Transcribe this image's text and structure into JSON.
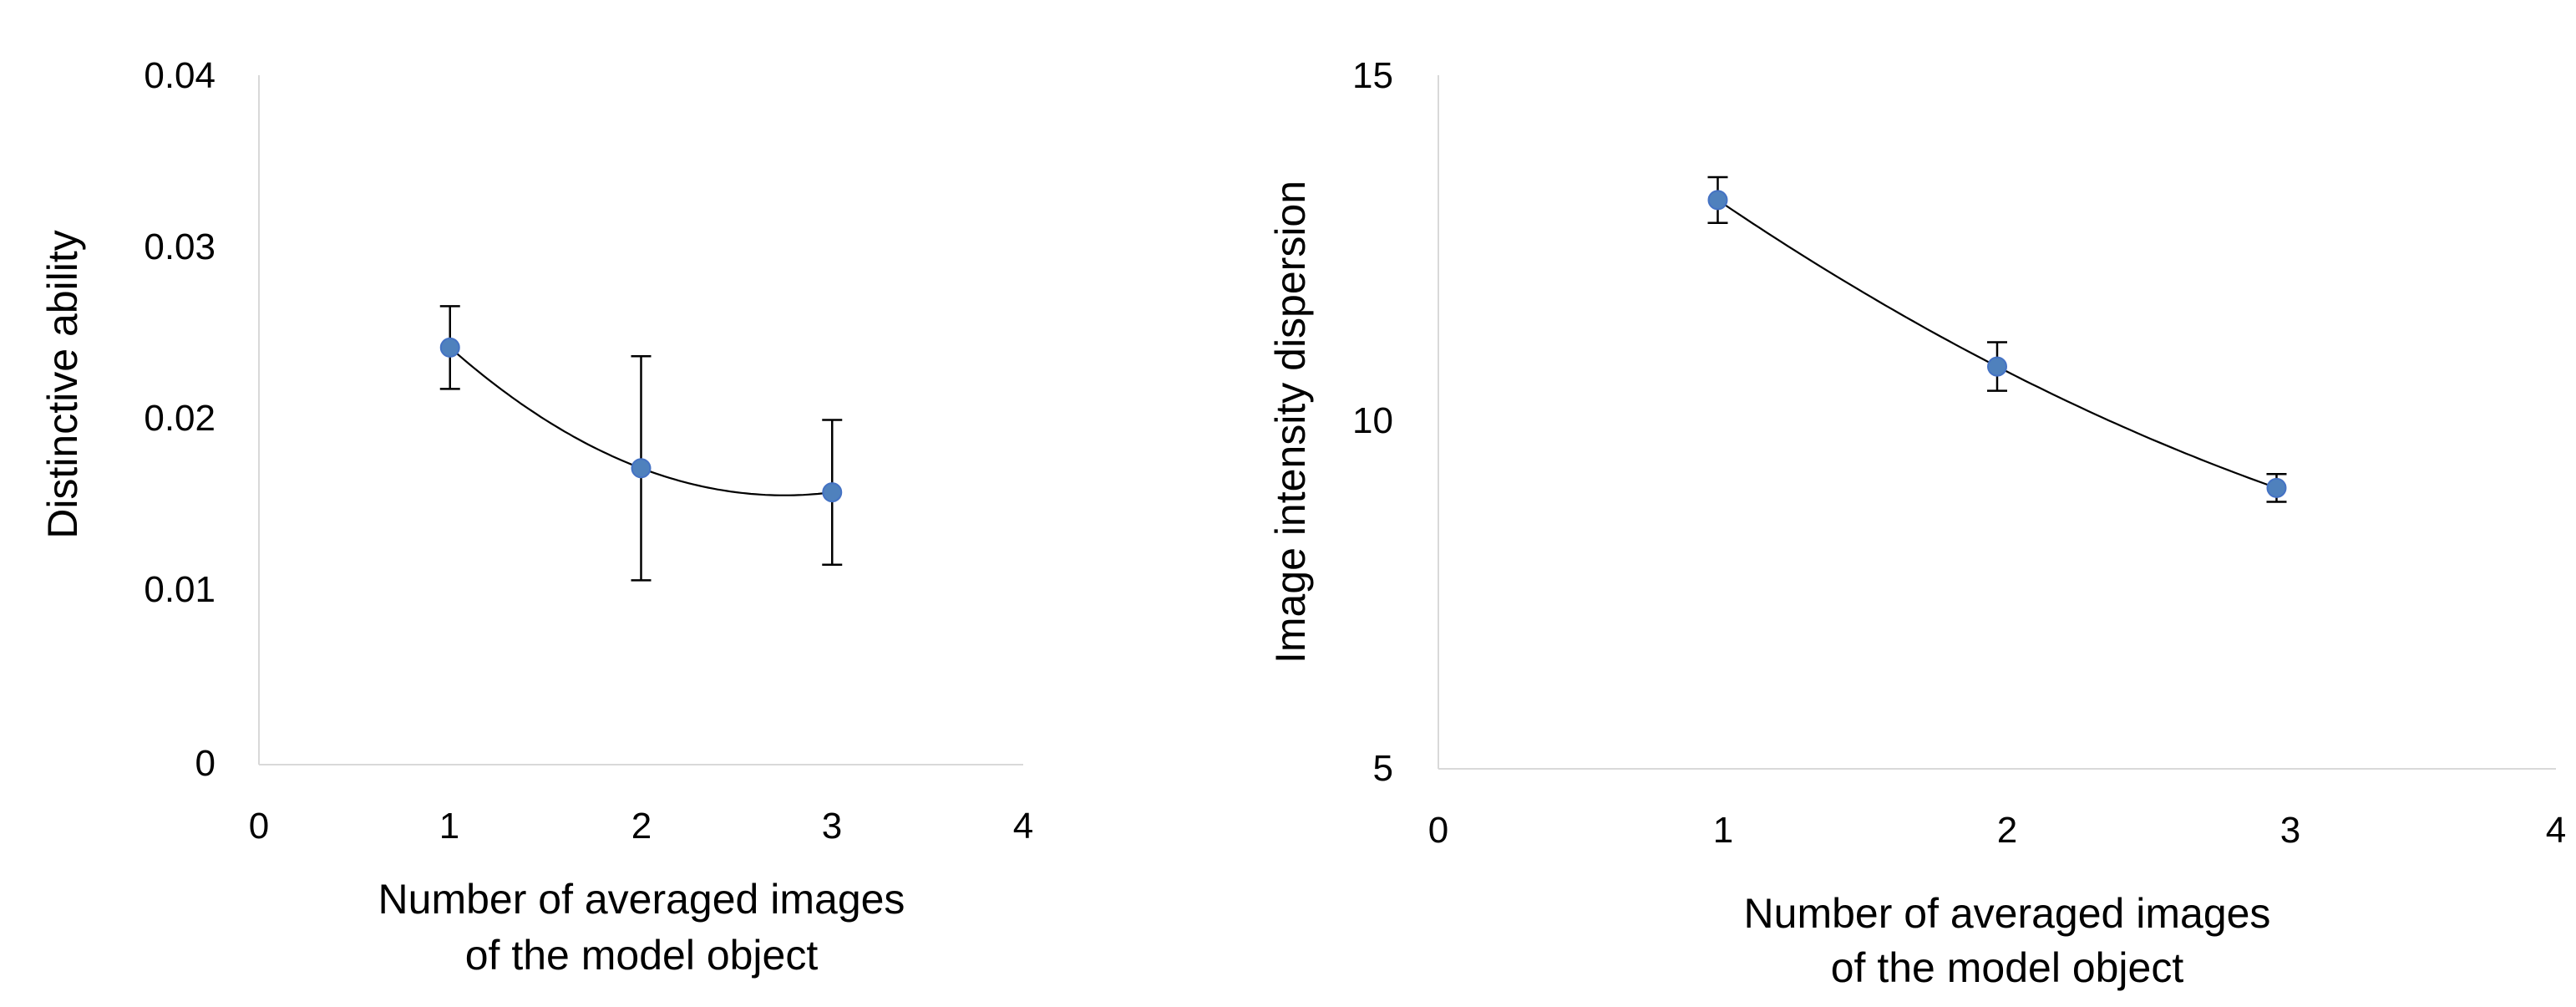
{
  "chart_data": [
    {
      "type": "scatter",
      "title": "",
      "xlabel": [
        "Number of averaged images",
        "of the model object"
      ],
      "ylabel": "Distinctive ability",
      "xlim": [
        0,
        4
      ],
      "ylim": [
        0,
        0.04
      ],
      "x_ticks": [
        "0",
        "1",
        "2",
        "3",
        "4"
      ],
      "y_ticks": [
        "0",
        "0.01",
        "0.02",
        "0.03",
        "0.04"
      ],
      "grid": false,
      "trendline": "polynomial",
      "series": [
        {
          "x": [
            1,
            2,
            3
          ],
          "y": [
            0.0242,
            0.0172,
            0.0158
          ],
          "error": [
            0.0024,
            0.0065,
            0.0042
          ]
        }
      ],
      "marker_color": "#4f81bd"
    },
    {
      "type": "scatter",
      "title": "",
      "xlabel": [
        "Number of averaged images",
        "of the model object"
      ],
      "ylabel": "Image intensity dispersion",
      "xlim": [
        0,
        4
      ],
      "ylim": [
        5,
        15
      ],
      "x_ticks": [
        "0",
        "1",
        "2",
        "3",
        "4"
      ],
      "y_ticks": [
        "5",
        "10",
        "15"
      ],
      "grid": false,
      "trendline": "polynomial",
      "series": [
        {
          "x": [
            1,
            2,
            3
          ],
          "y": [
            13.2,
            10.8,
            9.05
          ],
          "error": [
            0.33,
            0.35,
            0.2
          ]
        }
      ],
      "marker_color": "#4f81bd"
    }
  ]
}
